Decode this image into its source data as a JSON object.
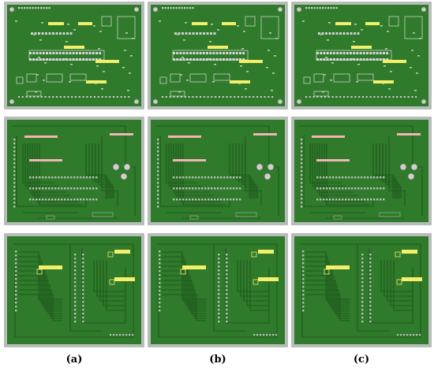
{
  "figure": {
    "columns": [
      {
        "id": "a",
        "label": "(a)"
      },
      {
        "id": "b",
        "label": "(b)"
      },
      {
        "id": "c",
        "label": "(c)"
      }
    ],
    "rows": [
      {
        "id": "top-assembly"
      },
      {
        "id": "top-copper"
      },
      {
        "id": "bottom-copper"
      }
    ],
    "colors": {
      "board": "#2f7a2b",
      "trace": "#1f5a1d",
      "frame": "#b7bcb9",
      "highlight_yellow": "#f2ef6a",
      "highlight_pink": "#f3b3b3"
    }
  }
}
